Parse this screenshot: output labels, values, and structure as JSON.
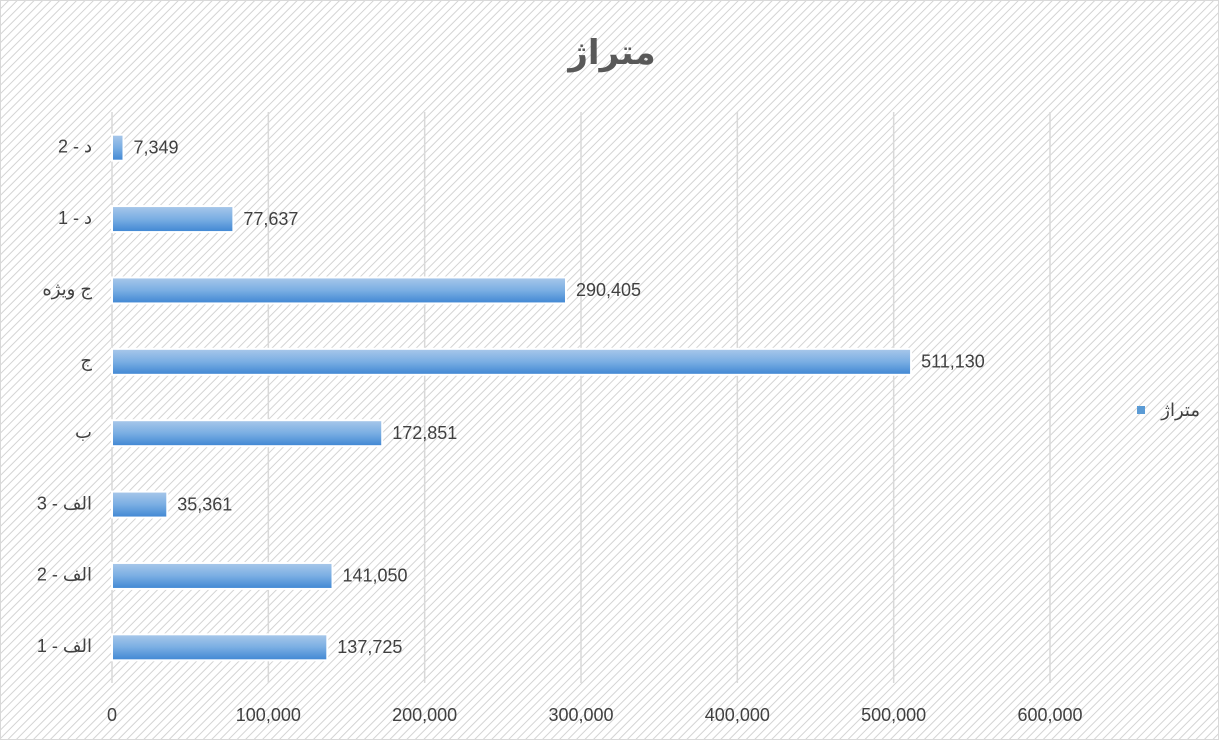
{
  "chart_data": {
    "type": "bar",
    "orientation": "horizontal",
    "title": "متراژ",
    "categories": [
      "الف - 1",
      "الف - 2",
      "الف - 3",
      "ب",
      "ج",
      "ج ویژه",
      "د - 1",
      "د - 2"
    ],
    "series": [
      {
        "name": "متراژ",
        "color": "#5b9bd5",
        "values": [
          137725,
          141050,
          35361,
          172851,
          511130,
          290405,
          77637,
          7349
        ],
        "value_labels": [
          "137,725",
          "141,050",
          "35,361",
          "172,851",
          "511,130",
          "290,405",
          "77,637",
          "7,349"
        ]
      }
    ],
    "xlim": [
      0,
      600000
    ],
    "xticks": [
      0,
      {
        "value": 100000,
        "label": "100,000"
      },
      {
        "value": 200000,
        "label": "200,000"
      },
      {
        "value": 300000,
        "label": "300,000"
      },
      {
        "value": 400000,
        "label": "400,000"
      },
      {
        "value": 500000,
        "label": "500,000"
      },
      {
        "value": 600000,
        "label": "600,000"
      }
    ],
    "grid": true,
    "legend": "right"
  }
}
